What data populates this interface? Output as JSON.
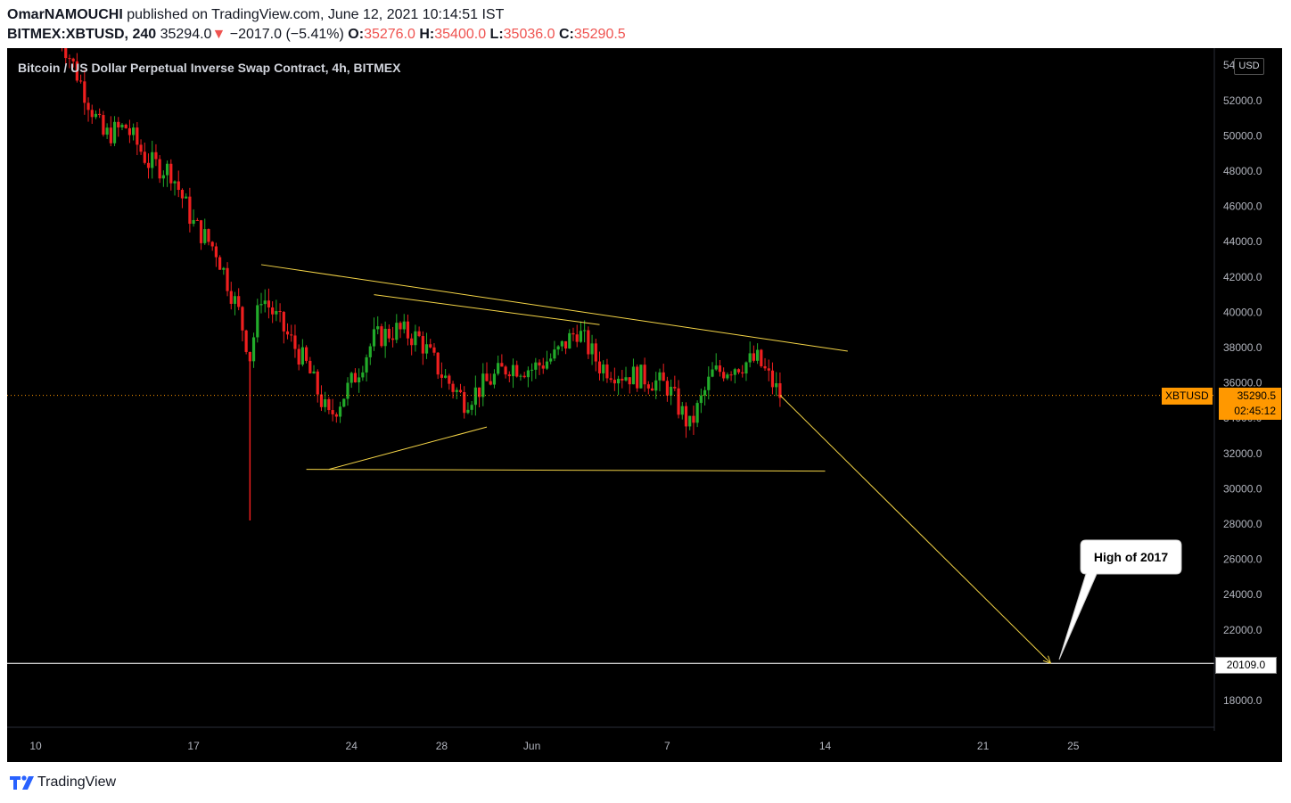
{
  "header": {
    "author": "OmarNAMOUCHI",
    "published_text": " published on TradingView.com, June 12, 2021 10:14:51 IST",
    "symbol": "BITMEX:XBTUSD, 240",
    "last_price": "35294.0",
    "change_arrow": "▼",
    "change": "−2017.0 (−5.41%)",
    "o_label": "O:",
    "o_value": "35276.0",
    "h_label": "H:",
    "h_value": "35400.0",
    "l_label": "L:",
    "l_value": "35036.0",
    "c_label": "C:",
    "c_value": "35290.5"
  },
  "chart_title": "Bitcoin / US Dollar Perpetual Inverse Swap Contract, 4h, BITMEX",
  "currency_button": "USD",
  "price_label": {
    "symbol": "XBTUSD",
    "value": "35290.5",
    "countdown": "02:45:12"
  },
  "level_label": "20109.0",
  "callout": "High of 2017",
  "footer": {
    "brand": "TradingView"
  },
  "colors": {
    "up": "#26a69a",
    "up_bright": "#22ab2a",
    "down": "#ef1f1f",
    "trendline": "#f5d547",
    "price_badge": "#ff9800",
    "level_line": "#ffffff"
  },
  "chart_data": {
    "type": "candlestick",
    "title": "Bitcoin / US Dollar Perpetual Inverse Swap Contract, 4h, BITMEX",
    "timeframe": "4h",
    "ylim": [
      16000,
      55000
    ],
    "yticks": [
      18000,
      20000,
      22000,
      24000,
      26000,
      28000,
      30000,
      32000,
      34000,
      36000,
      38000,
      40000,
      42000,
      44000,
      46000,
      48000,
      50000,
      52000,
      54000
    ],
    "ytick_labels": [
      "18000.0",
      "20000.0",
      "22000.0",
      "24000.0",
      "26000.0",
      "28000.0",
      "30000.0",
      "32000.0",
      "34000.0",
      "36000.0",
      "38000.0",
      "40000.0",
      "42000.0",
      "44000.0",
      "46000.0",
      "48000.0",
      "50000.0",
      "52000.0",
      "54000.0"
    ],
    "x_dates": [
      "2021-05-10",
      "2021-05-17",
      "2021-05-24",
      "2021-05-28",
      "2021-06-01",
      "2021-06-07",
      "2021-06-14",
      "2021-06-21",
      "2021-06-25"
    ],
    "x_tick_labels": [
      "10",
      "17",
      "24",
      "28",
      "Jun",
      "7",
      "14",
      "21",
      "25"
    ],
    "last_price": 35290.5,
    "key_level": 20109.0,
    "series": [
      {
        "name": "XBTUSD",
        "points": [
          {
            "date": "2021-05-11",
            "close": 56000
          },
          {
            "date": "2021-05-13",
            "close": 50000
          },
          {
            "date": "2021-05-14",
            "close": 50500
          },
          {
            "date": "2021-05-15",
            "close": 48500
          },
          {
            "date": "2021-05-16",
            "close": 48000
          },
          {
            "date": "2021-05-17",
            "close": 45000
          },
          {
            "date": "2021-05-18",
            "close": 43500
          },
          {
            "date": "2021-05-19",
            "close": 40000
          },
          {
            "date": "2021-05-19T12:00",
            "close": 37500
          },
          {
            "date": "2021-05-20",
            "close": 41000
          },
          {
            "date": "2021-05-21",
            "close": 39000
          },
          {
            "date": "2021-05-22",
            "close": 37000
          },
          {
            "date": "2021-05-23",
            "close": 34000
          },
          {
            "date": "2021-05-24",
            "close": 36000
          },
          {
            "date": "2021-05-25",
            "close": 38500
          },
          {
            "date": "2021-05-26",
            "close": 39000
          },
          {
            "date": "2021-05-27",
            "close": 38500
          },
          {
            "date": "2021-05-28",
            "close": 36500
          },
          {
            "date": "2021-05-29",
            "close": 35000
          },
          {
            "date": "2021-05-30",
            "close": 36000
          },
          {
            "date": "2021-05-31",
            "close": 37000
          },
          {
            "date": "2021-06-01",
            "close": 36800
          },
          {
            "date": "2021-06-02",
            "close": 37500
          },
          {
            "date": "2021-06-03",
            "close": 39000
          },
          {
            "date": "2021-06-04",
            "close": 37000
          },
          {
            "date": "2021-06-05",
            "close": 36500
          },
          {
            "date": "2021-06-06",
            "close": 36300
          },
          {
            "date": "2021-06-07",
            "close": 35800
          },
          {
            "date": "2021-06-08",
            "close": 33500
          },
          {
            "date": "2021-06-09",
            "close": 36500
          },
          {
            "date": "2021-06-10",
            "close": 37000
          },
          {
            "date": "2021-06-11",
            "close": 37300
          },
          {
            "date": "2021-06-12",
            "close": 35290
          }
        ]
      }
    ],
    "drawings": [
      {
        "name": "upper-trendline",
        "from": {
          "date": "2021-05-20",
          "price": 42700
        },
        "to": {
          "date": "2021-06-15",
          "price": 37800
        }
      },
      {
        "name": "inner-trendline",
        "from": {
          "date": "2021-05-25",
          "price": 41000
        },
        "to": {
          "date": "2021-06-04",
          "price": 39300
        }
      },
      {
        "name": "lower-support",
        "from": {
          "date": "2021-05-22",
          "price": 31100
        },
        "to": {
          "date": "2021-06-14",
          "price": 31000
        }
      },
      {
        "name": "rising-line",
        "from": {
          "date": "2021-05-23",
          "price": 31100
        },
        "to": {
          "date": "2021-05-30",
          "price": 33500
        }
      },
      {
        "name": "projection-arrow",
        "from": {
          "date": "2021-06-12",
          "price": 35300
        },
        "to": {
          "date": "2021-06-24",
          "price": 20109
        }
      }
    ]
  }
}
